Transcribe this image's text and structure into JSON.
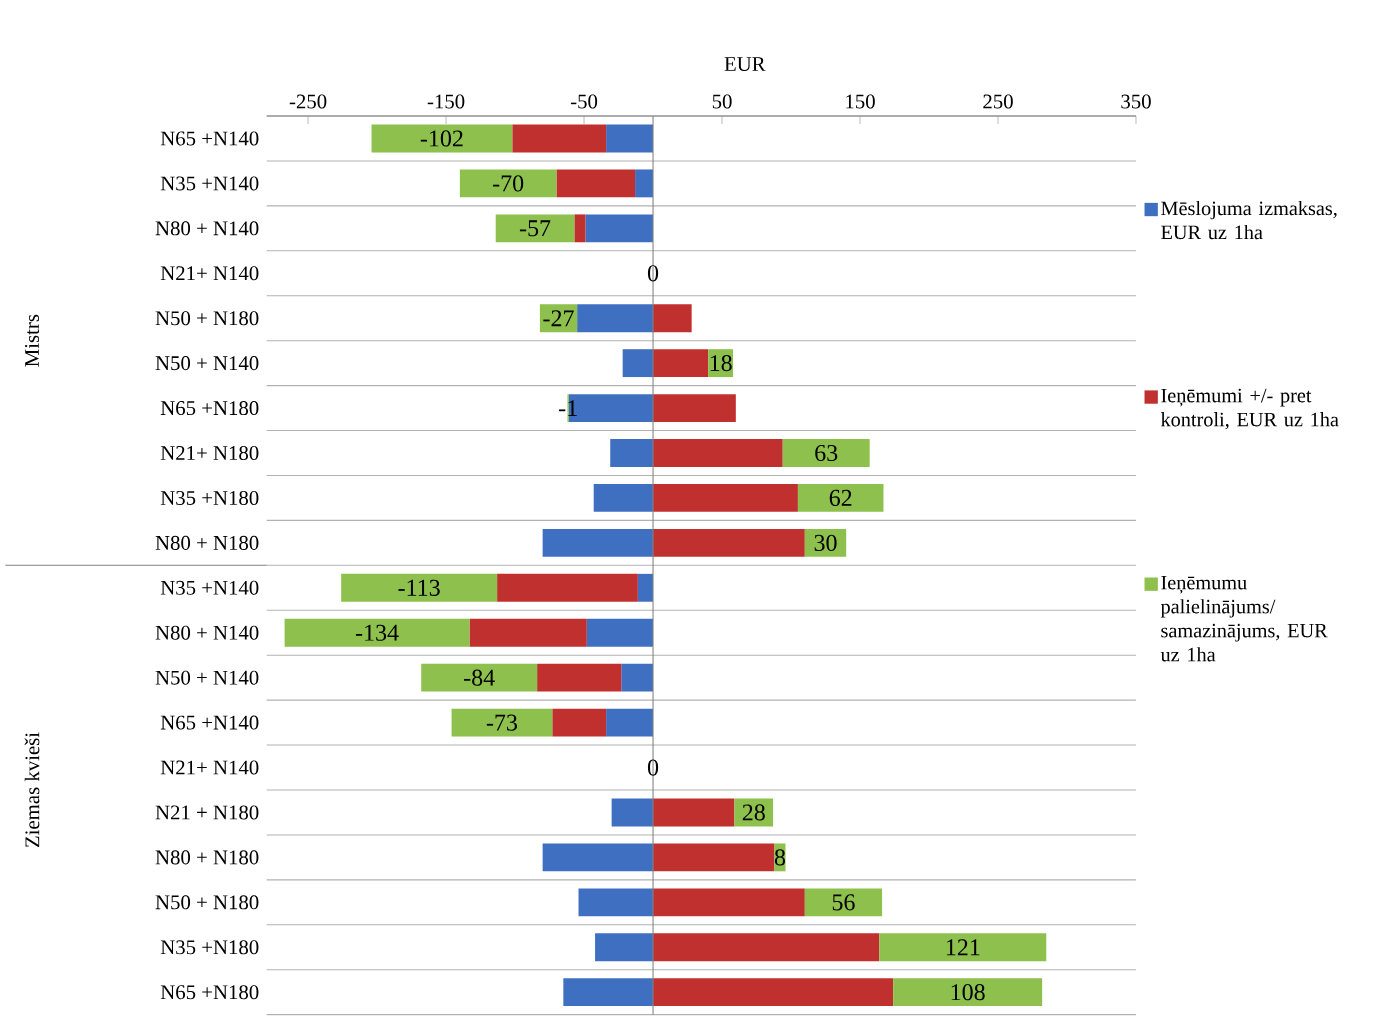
{
  "chart_data": {
    "type": "bar",
    "orientation": "horizontal",
    "stacked": true,
    "xlabel": "EUR",
    "categories": [
      "N65 +N140",
      "N35 +N140",
      "N80 + N140",
      "N21+ N140",
      "N50 + N180",
      "N50 + N140",
      "N65 +N180",
      "N21+ N180",
      "N35 +N180",
      "N80 + N180",
      "N35 +N140",
      "N80 + N140",
      "N50 + N140",
      "N65 +N140",
      "N21+ N140",
      "N21 + N180",
      "N80 + N180",
      "N50 + N180",
      "N35 +N180",
      "N65 +N180"
    ],
    "series": [
      {
        "name": "Mēslojuma izmaksas, EUR uz 1ha",
        "color": "#3f6fc1",
        "values": [
          -34,
          -13,
          -49,
          0,
          -55,
          -22,
          -61,
          -31,
          -43,
          -80,
          -11,
          -48,
          -23,
          -34,
          0,
          -30,
          -80,
          -54,
          -42,
          -65
        ]
      },
      {
        "name": "Ieņēmumi +/- pret kontroli, EUR uz 1ha",
        "color": "#c0302f",
        "values": [
          -68,
          -57,
          -8,
          0,
          28,
          40,
          60,
          94,
          105,
          110,
          -102,
          -85,
          -61,
          -39,
          0,
          59,
          88,
          110,
          164,
          174
        ]
      },
      {
        "name": "Ieņēmumu palielinājums/ samazinājums, EUR uz 1ha",
        "color": "#8dc04d",
        "values": [
          -102,
          -70,
          -57,
          0,
          -27,
          18,
          -1,
          63,
          62,
          30,
          -113,
          -134,
          -84,
          -73,
          0,
          28,
          8,
          56,
          121,
          108
        ],
        "value_labels": [
          "-102",
          "-70",
          "-57",
          "0",
          "-27",
          "18",
          "-1",
          "63",
          "62",
          "30",
          "-113",
          "-134",
          "-84",
          "-73",
          "0",
          "28",
          "8",
          "56",
          "121",
          "108"
        ]
      }
    ],
    "xlim": [
      -280,
      350
    ],
    "xticks": [
      -250,
      -150,
      -50,
      50,
      150,
      250,
      350
    ],
    "grid": "y",
    "legend": "right",
    "annotations": [
      "Mistrs",
      "Ziemas kvieši"
    ]
  }
}
